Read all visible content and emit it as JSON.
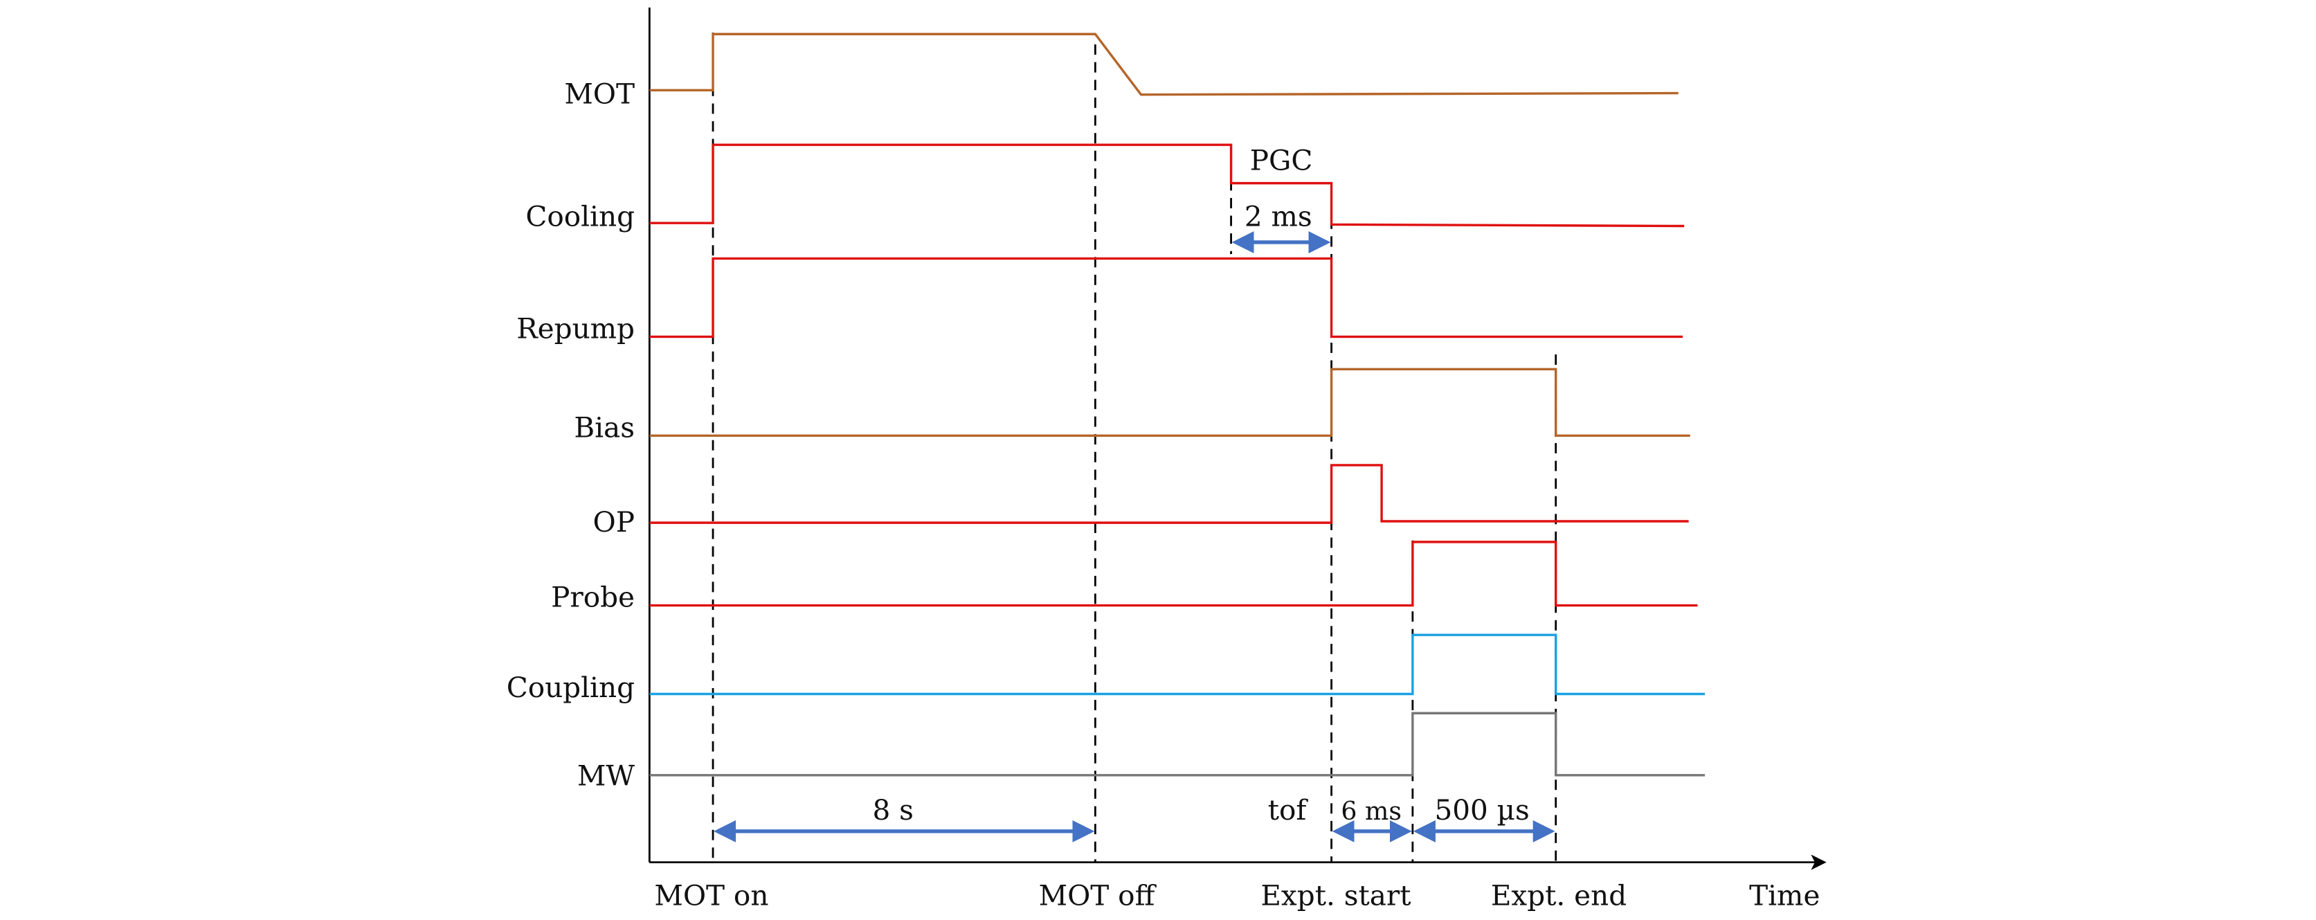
{
  "diagram": {
    "axis_label": "Time",
    "signals": [
      {
        "name": "MOT",
        "color": "#b5652a"
      },
      {
        "name": "Cooling",
        "color": "#e01010"
      },
      {
        "name": "Repump",
        "color": "#e01010"
      },
      {
        "name": "Bias",
        "color": "#b5652a"
      },
      {
        "name": "OP",
        "color": "#e01010"
      },
      {
        "name": "Probe",
        "color": "#e01010"
      },
      {
        "name": "Coupling",
        "color": "#1ba1e2"
      },
      {
        "name": "MW",
        "color": "#777777"
      }
    ],
    "events": [
      "MOT on",
      "MOT off",
      "Expt. start",
      "Expt. end"
    ],
    "annotations": {
      "pgc": "PGC",
      "pgc_duration": "2 ms",
      "mot_duration": "8 s",
      "tof": "tof",
      "tof_duration": "6 ms",
      "expt_duration": "500 µs"
    },
    "arrow_color": "#4472c4"
  }
}
